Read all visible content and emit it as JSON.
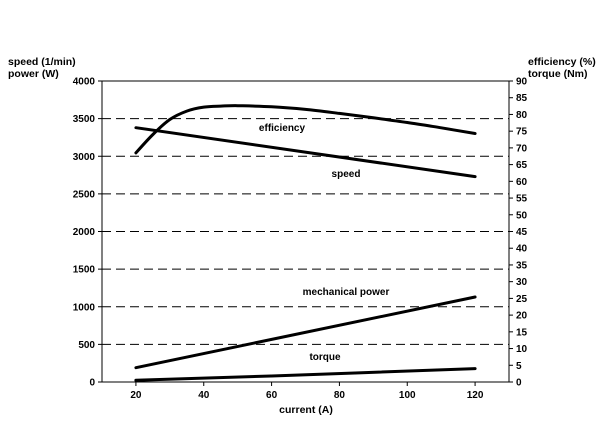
{
  "chart_data": {
    "type": "line",
    "title": "",
    "xlabel": "current (A)",
    "xlim": [
      10,
      130
    ],
    "x_ticks": [
      20,
      40,
      60,
      80,
      100,
      120
    ],
    "left_axis": {
      "label_lines": [
        "speed (1/min)",
        "power (W)"
      ],
      "ylim": [
        0,
        4000
      ],
      "ticks": [
        0,
        500,
        1000,
        1500,
        2000,
        2500,
        3000,
        3500,
        4000
      ]
    },
    "right_axis": {
      "label_lines": [
        "efficiency (%)",
        "torque (Nm)"
      ],
      "ylim": [
        0,
        90
      ],
      "ticks": [
        0,
        5,
        10,
        15,
        20,
        25,
        30,
        35,
        40,
        45,
        50,
        55,
        60,
        65,
        70,
        75,
        80,
        85,
        90
      ]
    },
    "grid": "horizontal dashed at left-axis ticks",
    "series": [
      {
        "name": "efficiency",
        "axis": "right",
        "x": [
          20,
          25,
          30,
          35,
          40,
          45,
          50,
          60,
          70,
          80,
          90,
          100,
          110,
          120
        ],
        "y": [
          68.5,
          74,
          78.5,
          81,
          82.2,
          82.5,
          82.6,
          82.3,
          81.5,
          80.3,
          79,
          77.6,
          76,
          74.3
        ]
      },
      {
        "name": "speed",
        "axis": "left",
        "x": [
          20,
          120
        ],
        "y": [
          3380,
          2730
        ]
      },
      {
        "name": "mechanical power",
        "axis": "left",
        "x": [
          20,
          120
        ],
        "y": [
          190,
          1130
        ]
      },
      {
        "name": "torque",
        "axis": "right",
        "x": [
          20,
          60,
          120
        ],
        "y": [
          0.5,
          1.8,
          4
        ]
      }
    ]
  }
}
